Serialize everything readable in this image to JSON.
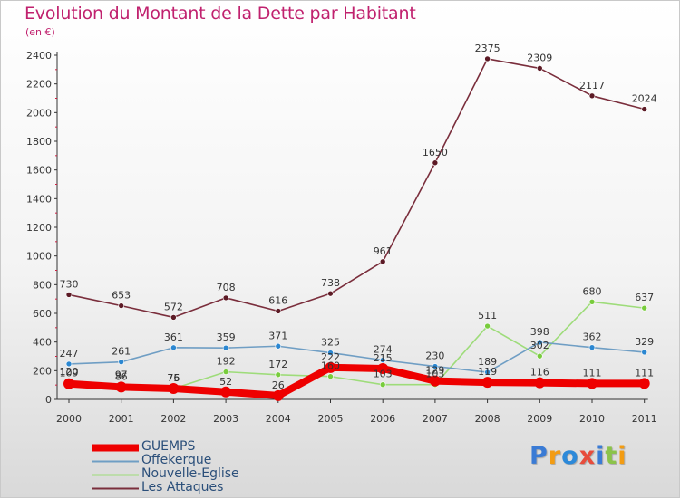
{
  "title": "Evolution du Montant de la Dette par Habitant",
  "subtitle": "(en €)",
  "logo": {
    "text": "Proxiti",
    "colors": [
      "#3a7bd5",
      "#f39c12",
      "#2c89d9",
      "#e74c3c",
      "#3a7bd5",
      "#8bc34a",
      "#f39c12"
    ]
  },
  "chart_data": {
    "type": "line",
    "title": "Evolution du Montant de la Dette par Habitant",
    "subtitle": "(en €)",
    "xlabel": "",
    "ylabel": "",
    "ylim": [
      0,
      2400
    ],
    "yticks": [
      0,
      200,
      400,
      600,
      800,
      1000,
      1200,
      1400,
      1600,
      1800,
      2000,
      2200,
      2400
    ],
    "grid": false,
    "legend_position": "bottom-left",
    "x": [
      "2000",
      "2001",
      "2002",
      "2003",
      "2004",
      "2005",
      "2006",
      "2007",
      "2008",
      "2009",
      "2010",
      "2011"
    ],
    "series": [
      {
        "name": "GUEMPS",
        "color": "#ee0000",
        "point_color": "#ee0000",
        "bold": true,
        "values": [
          109,
          86,
          76,
          52,
          26,
          222,
          215,
          129,
          119,
          116,
          111,
          111
        ],
        "labels": [
          "109",
          "86",
          "76",
          "52",
          "26",
          "222",
          "215",
          "129",
          "119",
          "116",
          "111",
          "111"
        ]
      },
      {
        "name": "Offekerque",
        "color": "#6f9ec4",
        "point_color": "#2b87d1",
        "values": [
          247,
          261,
          361,
          359,
          371,
          325,
          274,
          230,
          189,
          398,
          362,
          329
        ],
        "labels": [
          "247",
          "261",
          "361",
          "359",
          "371",
          "325",
          "274",
          "230",
          "189",
          "398",
          "362",
          "329"
        ]
      },
      {
        "name": "Nouvelle-Eglise",
        "color": "#9edc7a",
        "point_color": "#78cc3c",
        "values": [
          120,
          97,
          75,
          192,
          172,
          160,
          103,
          103,
          511,
          302,
          680,
          637
        ],
        "labels": [
          "120",
          "97",
          "75",
          "192",
          "172",
          "160",
          "103",
          "103",
          "511",
          "302",
          "680",
          "637"
        ]
      },
      {
        "name": "Les Attaques",
        "color": "#7a2e3c",
        "point_color": "#5c1a25",
        "values": [
          730,
          653,
          572,
          708,
          616,
          738,
          961,
          1650,
          2375,
          2309,
          2117,
          2024
        ],
        "labels": [
          "730",
          "653",
          "572",
          "708",
          "616",
          "738",
          "961",
          "1650",
          "2375",
          "2309",
          "2117",
          "2024"
        ]
      }
    ]
  }
}
